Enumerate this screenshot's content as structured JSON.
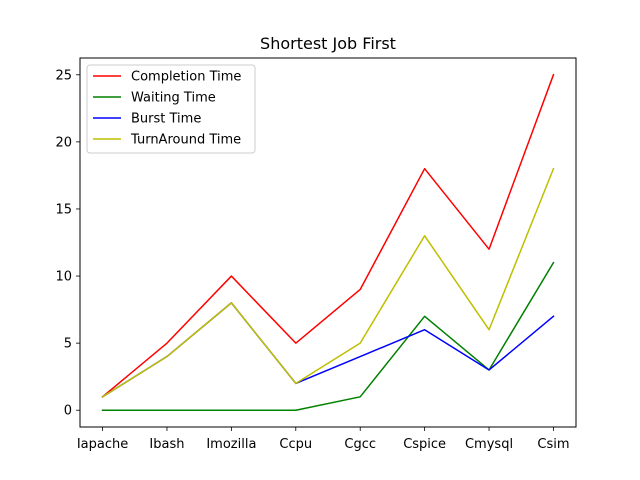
{
  "chart_data": {
    "type": "line",
    "title": "Shortest Job First",
    "xlabel": "",
    "ylabel": "",
    "categories": [
      "Iapache",
      "Ibash",
      "Imozilla",
      "Ccpu",
      "Cgcc",
      "Cspice",
      "Cmysql",
      "Csim"
    ],
    "ylim": [
      -1.25,
      26.25
    ],
    "yticks": [
      0,
      5,
      10,
      15,
      20,
      25
    ],
    "grid": false,
    "legend_position": "top-left",
    "series": [
      {
        "name": "Completion Time",
        "color": "#ff0000",
        "values": [
          1,
          5,
          10,
          5,
          9,
          18,
          12,
          25
        ]
      },
      {
        "name": "Waiting Time",
        "color": "#008000",
        "values": [
          0,
          0,
          0,
          0,
          1,
          7,
          3,
          11
        ]
      },
      {
        "name": "Burst Time",
        "color": "#0000ff",
        "values": [
          1,
          4,
          8,
          2,
          4,
          6,
          3,
          7
        ]
      },
      {
        "name": "TurnAround Time",
        "color": "#bfbf00",
        "values": [
          1,
          4,
          8,
          2,
          5,
          13,
          6,
          18
        ]
      }
    ]
  }
}
